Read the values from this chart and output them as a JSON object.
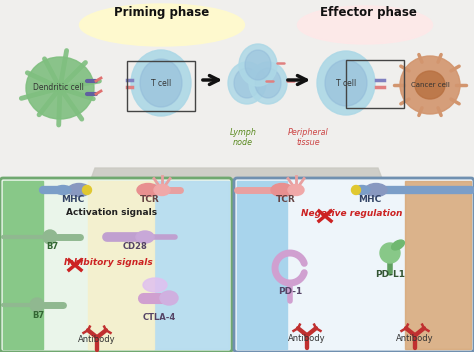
{
  "bg_color": "#f0efed",
  "colors": {
    "dendritic_cell_body": "#7fbf7f",
    "t_cell_body": "#add8e6",
    "t_cell_inner": "#8fb8d8",
    "cancer_cell_body": "#d2956e",
    "cancer_cell_inner": "#b87040",
    "arrow_color": "#111111",
    "mhc_color": "#7b9ec8",
    "tcr_color": "#e8a0a0",
    "b7_color": "#90b890",
    "cd28_color": "#c0a0d0",
    "antibody_color": "#c03030",
    "ctla4_color": "#d0a0d0",
    "pd1_color": "#d0a0d0",
    "pdl1_color": "#90c090",
    "yellow_glow": "#fffacd"
  },
  "top_labels": {
    "priming_phase": "Priming phase",
    "effector_phase": "Effector phase",
    "lymph_node": "Lymph\nnode",
    "peripheral_tissue": "Peripheral\ntissue",
    "dendritic_cell": "Dendritic cell",
    "t_cell": "T cell",
    "cancer_cell": "Cancer cell"
  },
  "bottom_left_labels": {
    "mhc": "MHC",
    "tcr": "TCR",
    "activation_signals": "Activation signals",
    "b7_1": "B7",
    "cd28": "CD28",
    "inhibitory_signals": "Inhibitory signals",
    "b7_2": "B7",
    "antibody_left": "Antibody",
    "ctla4": "CTLA-4"
  },
  "bottom_right_labels": {
    "tcr": "TCR",
    "mhc": "MHC",
    "negative_regulation": "Negative regulation",
    "pd1": "PD-1",
    "pdl1": "PD-L1",
    "antibody_mid": "Antibody",
    "antibody_right": "Antibody"
  }
}
